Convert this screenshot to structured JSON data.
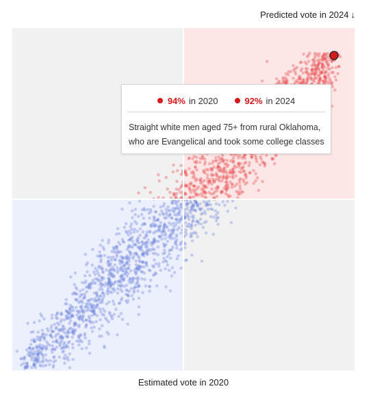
{
  "labels": {
    "y_axis": "Predicted vote in 2024",
    "y_arrow": "↓",
    "x_axis": "Estimated vote in 2020"
  },
  "colors": {
    "republican": "#e8474a",
    "democrat": "#6f86dc",
    "highlight": "#d7191c",
    "quadrant_red_bg": "#fce6e6",
    "quadrant_blue_bg": "#eceffc",
    "quadrant_grey_bg": "#f1f1f1"
  },
  "tooltip": {
    "pct_2020": "94%",
    "in_2020": "in 2020",
    "pct_2024": "92%",
    "in_2024": "in 2024",
    "description": "Straight white men aged 75+ from rural Oklahoma, who are Evangelical and took some college classes"
  },
  "chart_data": {
    "type": "scatter",
    "xlabel": "Estimated vote in 2020",
    "ylabel": "Predicted vote in 2024",
    "xlim": [
      0,
      100
    ],
    "ylim": [
      0,
      100
    ],
    "quadrant_split": 50,
    "highlight_point": {
      "x": 94,
      "y": 92
    },
    "approx_point_count": 2400,
    "trend": "strong positive correlation; low-share groups blue, high-share groups red"
  }
}
